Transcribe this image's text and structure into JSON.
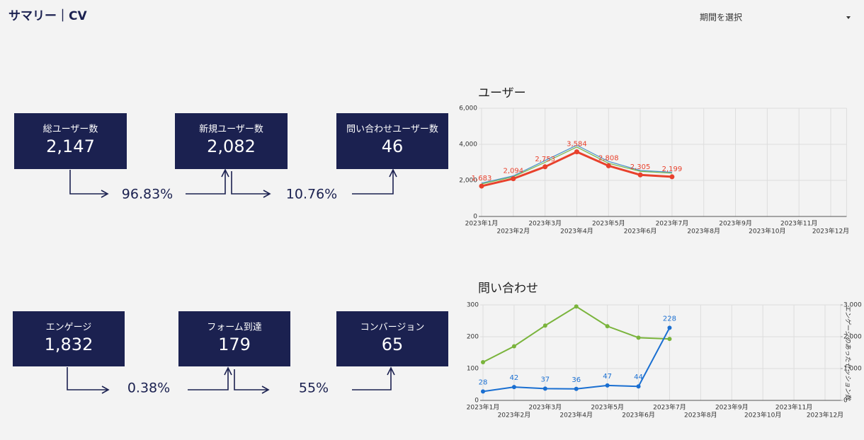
{
  "header": {
    "title": "サマリー｜CV",
    "period_select": "期間を選択"
  },
  "kpis": [
    {
      "label": "総ユーザー数",
      "value": "2,147"
    },
    {
      "label": "新規ユーザー数",
      "value": "2,082"
    },
    {
      "label": "問い合わせユーザー数",
      "value": "46"
    },
    {
      "label": "エンゲージ",
      "value": "1,832"
    },
    {
      "label": "フォーム到達",
      "value": "179"
    },
    {
      "label": "コンバージョン",
      "value": "65"
    }
  ],
  "rates": [
    "96.83%",
    "10.76%",
    "0.38%",
    "55%"
  ],
  "chart_data": [
    {
      "type": "line",
      "title": "ユーザー",
      "categories": [
        "2023年1月",
        "2023年2月",
        "2023年3月",
        "2023年4月",
        "2023年5月",
        "2023年6月",
        "2023年7月",
        "2023年8月",
        "2023年9月",
        "2023年10月",
        "2023年11月",
        "2023年12月"
      ],
      "series": [
        {
          "color": "#4a90c8",
          "values": [
            1850,
            2250,
            3100,
            3950,
            3050,
            2550,
            2450,
            null,
            null,
            null,
            null,
            null
          ]
        },
        {
          "color": "#7ab648",
          "values": [
            1800,
            2200,
            3000,
            3850,
            2950,
            2500,
            2400,
            null,
            null,
            null,
            null,
            null
          ]
        },
        {
          "color": "#e8412c",
          "values": [
            1683,
            2094,
            2753,
            3584,
            2808,
            2305,
            2199,
            null,
            null,
            null,
            null,
            null
          ],
          "value_labels": [
            "1,683",
            "2,094",
            "2,753",
            "3,584",
            "2,808",
            "2,305",
            "2,199",
            null,
            null,
            null,
            null,
            null
          ]
        }
      ],
      "ylim": [
        0,
        6000
      ],
      "yticks": [
        0,
        {
          "value": 2000,
          "label": "2,000"
        },
        {
          "value": 4000,
          "label": "4,000"
        },
        {
          "value": 6000,
          "label": "6,000"
        }
      ],
      "grid": true
    },
    {
      "type": "line",
      "title": "問い合わせ",
      "categories": [
        "2023年1月",
        "2023年2月",
        "2023年3月",
        "2023年4月",
        "2023年5月",
        "2023年6月",
        "2023年7月",
        "2023年8月",
        "2023年9月",
        "2023年10月",
        "2023年11月",
        "2023年12月"
      ],
      "series": [
        {
          "color": "#7ab43c",
          "axis": "y2",
          "values": [
            1200,
            1700,
            2350,
            2950,
            2330,
            1970,
            1930,
            null,
            null,
            null,
            null,
            null
          ]
        },
        {
          "color": "#1a6fd1",
          "values": [
            28,
            42,
            37,
            36,
            47,
            44,
            228,
            null,
            null,
            null,
            null,
            null
          ],
          "data_labels": true
        }
      ],
      "ylim": [
        0,
        300
      ],
      "yticks": [
        0,
        100,
        200,
        300
      ],
      "y2lim": [
        0,
        3000
      ],
      "y2ticks": [
        0,
        {
          "value": 1000,
          "label": "1,000"
        },
        {
          "value": 2000,
          "label": "2,000"
        },
        {
          "value": 3000,
          "label": "3,000"
        }
      ],
      "y2label": "エンゲージのあったセッション数",
      "grid": true
    }
  ]
}
